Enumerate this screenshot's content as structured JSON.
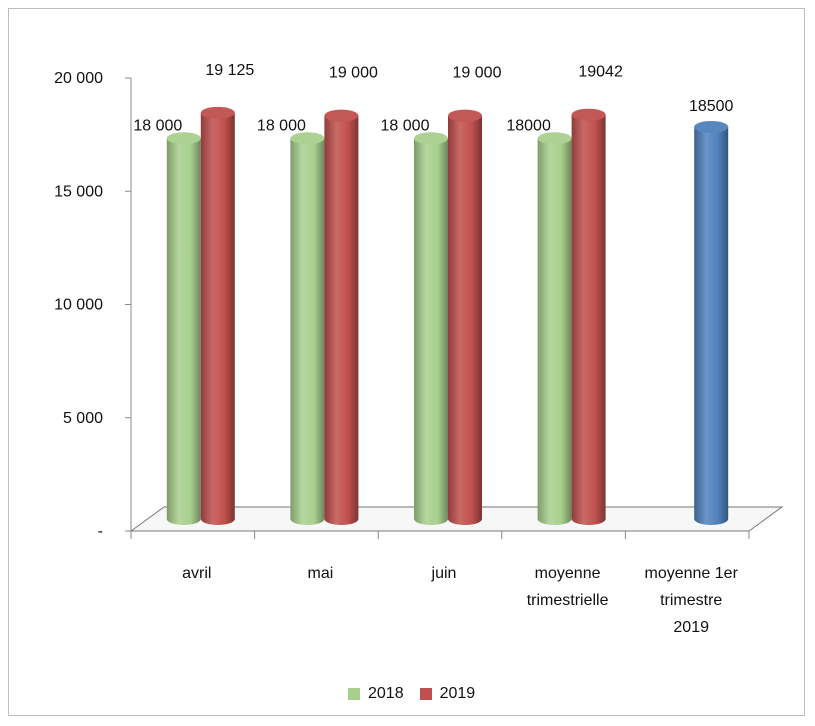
{
  "chart_data": {
    "type": "bar",
    "categories": [
      "avril",
      "mai",
      "juin",
      "moyenne trimestrielle",
      "moyenne 1er trimestre 2019"
    ],
    "category_lines": [
      [
        "avril"
      ],
      [
        "mai"
      ],
      [
        "juin"
      ],
      [
        "moyenne",
        "trimestrielle"
      ],
      [
        "moyenne 1er",
        "trimestre",
        "2019"
      ]
    ],
    "series": [
      {
        "name": "2018",
        "color": "#a8d08d",
        "values": [
          18000,
          18000,
          18000,
          18000,
          null
        ],
        "labels": [
          "18 000",
          "18 000",
          "18 000",
          "18000",
          ""
        ]
      },
      {
        "name": "2019",
        "color": "#c0504d",
        "values": [
          19125,
          19000,
          19000,
          19042,
          null
        ],
        "labels": [
          "19 125",
          "19 000",
          "19 000",
          "19042",
          ""
        ]
      },
      {
        "name": "",
        "color": "#4f81bd",
        "values": [
          null,
          null,
          null,
          null,
          18500
        ],
        "labels": [
          "",
          "",
          "",
          "",
          "18500"
        ]
      }
    ],
    "ylim": [
      0,
      20000
    ],
    "yticks": [
      0,
      5000,
      10000,
      15000,
      20000
    ],
    "ytick_labels": [
      "-",
      "5 000",
      "10 000",
      "15 000",
      "20 000"
    ],
    "grid": false,
    "legend_position": "bottom",
    "legend": [
      {
        "name": "2018",
        "color": "#a8d08d"
      },
      {
        "name": "2019",
        "color": "#c0504d"
      }
    ],
    "title": "",
    "xlabel": "",
    "ylabel": ""
  }
}
